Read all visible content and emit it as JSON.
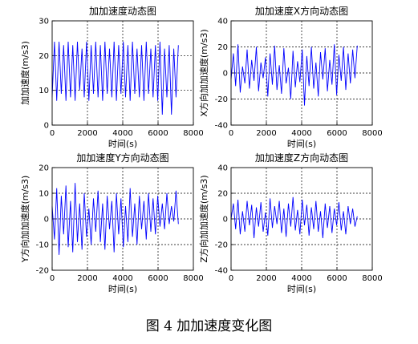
{
  "colors": {
    "series": "#0000ff",
    "axis": "#000000",
    "grid": "#000000"
  },
  "caption": "图 4  加加速度变化图",
  "chart_data": [
    {
      "type": "line",
      "title": "加加速度动态图",
      "xlabel": "时间(s)",
      "ylabel": "加加速度(m/s3)",
      "xlim": [
        0,
        8000
      ],
      "ylim": [
        0,
        30
      ],
      "xticks": [
        "0",
        "2000",
        "4000",
        "6000",
        "8000"
      ],
      "yticks": [
        "0",
        "10",
        "20",
        "30"
      ],
      "grid": true,
      "series": [
        {
          "x": [
            0,
            130,
            260,
            390,
            520,
            650,
            780,
            910,
            1040,
            1170,
            1300,
            1430,
            1560,
            1690,
            1820,
            1950,
            2080,
            2210,
            2340,
            2470,
            2600,
            2730,
            2860,
            2990,
            3120,
            3250,
            3380,
            3510,
            3640,
            3770,
            3900,
            4030,
            4160,
            4290,
            4420,
            4550,
            4680,
            4810,
            4940,
            5070,
            5200,
            5330,
            5460,
            5590,
            5720,
            5850,
            5980,
            6110,
            6240,
            6370,
            6500,
            6630,
            6760,
            6890,
            7020,
            7150
          ],
          "y": [
            8,
            24,
            7,
            24,
            9,
            23,
            7,
            24,
            8,
            23,
            7,
            24,
            10,
            22,
            8,
            24,
            7,
            23,
            9,
            24,
            8,
            23,
            7,
            24,
            9,
            22,
            8,
            24,
            7,
            23,
            9,
            24,
            8,
            23,
            7,
            24,
            9,
            22,
            8,
            23,
            7,
            24,
            9,
            22,
            8,
            23,
            7,
            24,
            3,
            22,
            8,
            23,
            3,
            22,
            8,
            23
          ]
        }
      ]
    },
    {
      "type": "line",
      "title": "加加速度X方向动态图",
      "xlabel": "时间(s)",
      "ylabel": "X方向加加速度(m/s3)",
      "xlim": [
        0,
        8000
      ],
      "ylim": [
        -40,
        40
      ],
      "xticks": [
        "0",
        "2000",
        "4000",
        "6000",
        "8000"
      ],
      "yticks": [
        "-40",
        "-20",
        "0",
        "20",
        "40"
      ],
      "grid": true,
      "series": [
        {
          "x": [
            0,
            130,
            260,
            390,
            520,
            650,
            780,
            910,
            1040,
            1170,
            1300,
            1430,
            1560,
            1690,
            1820,
            1950,
            2080,
            2210,
            2340,
            2470,
            2600,
            2730,
            2860,
            2990,
            3120,
            3250,
            3380,
            3510,
            3640,
            3770,
            3900,
            4030,
            4160,
            4290,
            4420,
            4550,
            4680,
            4810,
            4940,
            5070,
            5200,
            5330,
            5460,
            5590,
            5720,
            5850,
            5980,
            6110,
            6240,
            6370,
            6500,
            6630,
            6760,
            6890,
            7020,
            7150
          ],
          "y": [
            -5,
            15,
            -10,
            22,
            -15,
            5,
            -8,
            18,
            -12,
            10,
            -6,
            20,
            -14,
            8,
            -4,
            12,
            -18,
            15,
            -9,
            21,
            -13,
            6,
            -16,
            19,
            -8,
            4,
            -20,
            17,
            -11,
            9,
            -7,
            18,
            -25,
            13,
            -10,
            20,
            -12,
            8,
            -18,
            16,
            -5,
            19,
            -14,
            10,
            -9,
            22,
            -17,
            14,
            -6,
            20,
            -13,
            15,
            -8,
            18,
            -4,
            21
          ]
        }
      ]
    },
    {
      "type": "line",
      "title": "加加速度Y方向动态图",
      "xlabel": "时间(s)",
      "ylabel": "Y方向加加速度(m/s3)",
      "xlim": [
        0,
        8000
      ],
      "ylim": [
        -20,
        20
      ],
      "xticks": [
        "0",
        "2000",
        "4000",
        "6000",
        "8000"
      ],
      "yticks": [
        "-20",
        "-10",
        "0",
        "10",
        "20"
      ],
      "grid": true,
      "series": [
        {
          "x": [
            0,
            130,
            260,
            390,
            520,
            650,
            780,
            910,
            1040,
            1170,
            1300,
            1430,
            1560,
            1690,
            1820,
            1950,
            2080,
            2210,
            2340,
            2470,
            2600,
            2730,
            2860,
            2990,
            3120,
            3250,
            3380,
            3510,
            3640,
            3770,
            3900,
            4030,
            4160,
            4290,
            4420,
            4550,
            4680,
            4810,
            4940,
            5070,
            5200,
            5330,
            5460,
            5590,
            5720,
            5850,
            5980,
            6110,
            6240,
            6370,
            6500,
            6630,
            6760,
            6890,
            7020,
            7150
          ],
          "y": [
            5,
            -8,
            12,
            -14,
            9,
            -6,
            13,
            -11,
            7,
            -13,
            14,
            -9,
            6,
            -12,
            10,
            -7,
            4,
            -10,
            8,
            -5,
            11,
            -9,
            6,
            -12,
            9,
            -4,
            7,
            -13,
            10,
            -6,
            8,
            -11,
            5,
            -9,
            12,
            -7,
            6,
            -10,
            9,
            -4,
            7,
            -8,
            10,
            -5,
            8,
            -6,
            9,
            -3,
            6,
            -4,
            10,
            -2,
            5,
            -1,
            11,
            -2
          ]
        }
      ]
    },
    {
      "type": "line",
      "title": "加加速度Z方向动态图",
      "xlabel": "时间(s)",
      "ylabel": "Z方向加加速度(m/s3)",
      "xlim": [
        0,
        8000
      ],
      "ylim": [
        -40,
        40
      ],
      "xticks": [
        "0",
        "2000",
        "4000",
        "6000",
        "8000"
      ],
      "yticks": [
        "-40",
        "-20",
        "0",
        "20",
        "40"
      ],
      "grid": true,
      "series": [
        {
          "x": [
            0,
            130,
            260,
            390,
            520,
            650,
            780,
            910,
            1040,
            1170,
            1300,
            1430,
            1560,
            1690,
            1820,
            1950,
            2080,
            2210,
            2340,
            2470,
            2600,
            2730,
            2860,
            2990,
            3120,
            3250,
            3380,
            3510,
            3640,
            3770,
            3900,
            4030,
            4160,
            4290,
            4420,
            4550,
            4680,
            4810,
            4940,
            5070,
            5200,
            5330,
            5460,
            5590,
            5720,
            5850,
            5980,
            6110,
            6240,
            6370,
            6500,
            6630,
            6760,
            6890,
            7020,
            7150
          ],
          "y": [
            0,
            12,
            -8,
            15,
            -12,
            6,
            -10,
            14,
            -5,
            11,
            -15,
            9,
            -6,
            13,
            -10,
            5,
            -13,
            16,
            -7,
            10,
            -4,
            14,
            -11,
            8,
            -14,
            12,
            -6,
            17,
            -9,
            7,
            -12,
            15,
            -5,
            11,
            -13,
            9,
            -8,
            14,
            -10,
            6,
            -15,
            12,
            -7,
            10,
            -11,
            8,
            -5,
            13,
            -9,
            6,
            -12,
            10,
            -4,
            8,
            -6,
            2
          ]
        }
      ]
    }
  ]
}
